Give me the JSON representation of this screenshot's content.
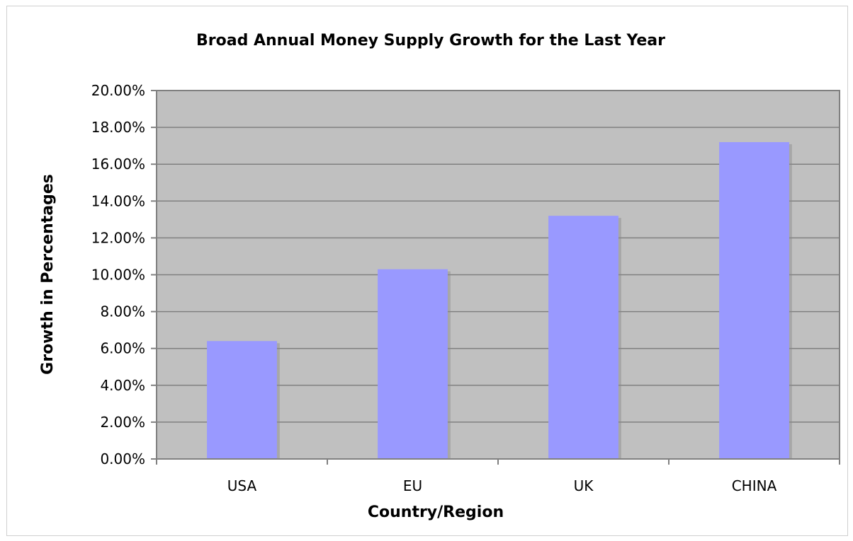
{
  "chart_data": {
    "type": "bar",
    "title": "Broad Annual Money Supply Growth for the Last Year",
    "xlabel": "Country/Region",
    "ylabel": "Growth in Percentages",
    "categories": [
      "USA",
      "EU",
      "UK",
      "CHINA"
    ],
    "values": [
      6.4,
      10.3,
      13.2,
      17.2
    ],
    "ylim": [
      0,
      20
    ],
    "y_ticks": [
      "0.00%",
      "2.00%",
      "4.00%",
      "6.00%",
      "8.00%",
      "10.00%",
      "12.00%",
      "14.00%",
      "16.00%",
      "18.00%",
      "20.00%"
    ],
    "grid": true,
    "legend": "none",
    "colors": {
      "bar": "#9999ff",
      "plot_background": "#c0c0c0",
      "gridline": "#808080",
      "axis": "#808080"
    }
  }
}
